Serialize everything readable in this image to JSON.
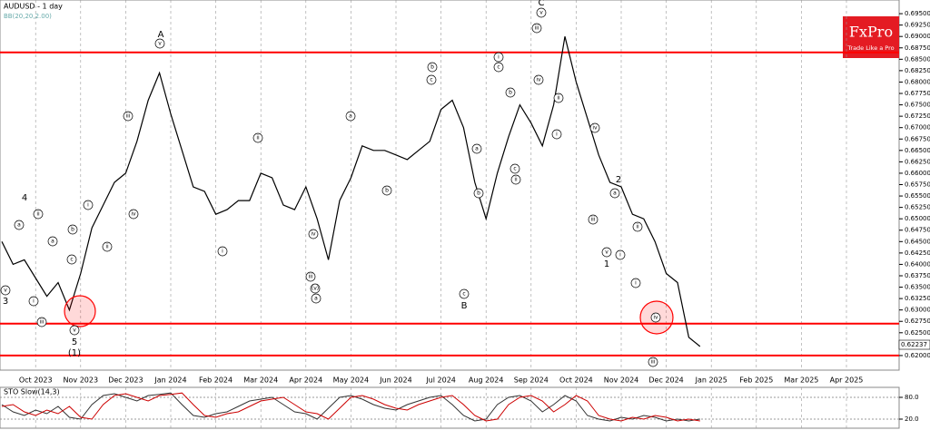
{
  "chart_data": [
    {
      "type": "line",
      "title": "AUDUSD - 1 day",
      "subtitle": "BB(20,20,2.00)",
      "categories": [
        null,
        null,
        null,
        "Oct 2023",
        null,
        null,
        null,
        "Nov 2023",
        null,
        null,
        null,
        "Dec 2023",
        null,
        null,
        null,
        "Jan 2024",
        null,
        null,
        null,
        "Feb 2024",
        null,
        null,
        null,
        "Mar 2024",
        null,
        null,
        null,
        "Apr 2024",
        null,
        null,
        null,
        "May 2024",
        null,
        null,
        null,
        "Jun 2024",
        null,
        null,
        null,
        "Jul 2024",
        null,
        null,
        null,
        "Aug 2024",
        null,
        null,
        null,
        "Sep 2024",
        null,
        null,
        null,
        "Oct 2024",
        null,
        null,
        null,
        "Nov 2024",
        null,
        null,
        null,
        "Dec 2024",
        null,
        null,
        null,
        "Jan 2025",
        null,
        null,
        null,
        "Feb 2025",
        null,
        null,
        null,
        "Mar 2025",
        null,
        null,
        null,
        "Apr 2025",
        null,
        null,
        null,
        null
      ],
      "series": [
        {
          "color": "#000000",
          "values": [
            0.645,
            0.64,
            0.641,
            0.637,
            0.633,
            0.636,
            0.63,
            0.638,
            0.648,
            0.653,
            0.658,
            0.66,
            0.667,
            0.676,
            0.682,
            0.673,
            0.665,
            0.657,
            0.656,
            0.651,
            0.652,
            0.654,
            0.654,
            0.66,
            0.659,
            0.653,
            0.652,
            0.657,
            0.65,
            0.641,
            0.654,
            0.659,
            0.666,
            0.665,
            0.665,
            0.664,
            0.663,
            0.665,
            0.667,
            0.674,
            0.676,
            0.67,
            0.658,
            0.65,
            0.66,
            0.668,
            0.675,
            0.671,
            0.666,
            0.675,
            0.69,
            0.68,
            0.672,
            0.664,
            0.658,
            0.657,
            0.651,
            0.65,
            0.645,
            0.638,
            0.636,
            0.624,
            0.622,
            null,
            null,
            null,
            null,
            null,
            null,
            null,
            null,
            null,
            null,
            null,
            null,
            null,
            null,
            null,
            null,
            null
          ]
        }
      ],
      "ylim": [
        0.6168,
        0.698
      ],
      "yticks": [
        {
          "value": 0.62,
          "label": "0.62000"
        },
        {
          "value": 0.6225,
          "label": "0.62250"
        },
        {
          "value": 0.625,
          "label": "0.62500"
        },
        {
          "value": 0.6275,
          "label": "0.62750"
        },
        {
          "value": 0.63,
          "label": "0.63000"
        },
        {
          "value": 0.6325,
          "label": "0.63250"
        },
        {
          "value": 0.635,
          "label": "0.63500"
        },
        {
          "value": 0.6375,
          "label": "0.63750"
        },
        {
          "value": 0.64,
          "label": "0.64000"
        },
        {
          "value": 0.6425,
          "label": "0.64250"
        },
        {
          "value": 0.645,
          "label": "0.64500"
        },
        {
          "value": 0.6475,
          "label": "0.64750"
        },
        {
          "value": 0.65,
          "label": "0.65000"
        },
        {
          "value": 0.6525,
          "label": "0.65250"
        },
        {
          "value": 0.655,
          "label": "0.65500"
        },
        {
          "value": 0.6575,
          "label": "0.65750"
        },
        {
          "value": 0.66,
          "label": "0.66000"
        },
        {
          "value": 0.6625,
          "label": "0.66250"
        },
        {
          "value": 0.665,
          "label": "0.66500"
        },
        {
          "value": 0.6675,
          "label": "0.66750"
        },
        {
          "value": 0.67,
          "label": "0.67000"
        },
        {
          "value": 0.6725,
          "label": "0.67250"
        },
        {
          "value": 0.675,
          "label": "0.67500"
        },
        {
          "value": 0.6775,
          "label": "0.67750"
        },
        {
          "value": 0.68,
          "label": "0.68000"
        },
        {
          "value": 0.6825,
          "label": "0.68250"
        },
        {
          "value": 0.685,
          "label": "0.68500"
        },
        {
          "value": 0.6875,
          "label": "0.68750"
        },
        {
          "value": 0.69,
          "label": "0.69000"
        },
        {
          "value": 0.6925,
          "label": "0.69250"
        },
        {
          "value": 0.695,
          "label": "0.69500"
        }
      ],
      "levels": [
        {
          "value": 0.6865,
          "color": "#ff0000"
        },
        {
          "value": 0.627,
          "color": "#ff0000"
        },
        {
          "value": 0.62,
          "color": "#ff0000"
        }
      ],
      "last_price": 0.62237,
      "annotations": [
        "A",
        "v",
        "iii",
        "iv",
        "ii",
        "i",
        "4",
        "ii",
        "a",
        "a",
        "b",
        "c",
        "i",
        "iii",
        "v",
        "5",
        "(1)",
        "3",
        "v",
        "ii",
        "i",
        "iv",
        "iii",
        "(v)",
        "a",
        "a",
        "b",
        "b",
        "c",
        "B",
        "c",
        "a",
        "b",
        "i",
        "c",
        "b",
        "c",
        "ii",
        "C",
        "v",
        "iii",
        "iv",
        "ii",
        "i",
        "iv",
        "a",
        "2",
        "iii",
        "v",
        "1",
        "ii",
        "i",
        "i",
        "iv",
        "iii"
      ]
    },
    {
      "type": "line",
      "title": "STO Slow(14,3)",
      "series": [
        {
          "color": "#333333",
          "values": [
            60,
            40,
            30,
            45,
            35,
            55,
            25,
            20,
            60,
            85,
            90,
            80,
            70,
            85,
            88,
            92,
            60,
            30,
            25,
            35,
            40,
            55,
            70,
            75,
            80,
            60,
            40,
            35,
            20,
            50,
            80,
            85,
            75,
            60,
            50,
            45,
            60,
            70,
            80,
            85,
            60,
            30,
            15,
            20,
            60,
            80,
            85,
            70,
            40,
            60,
            85,
            70,
            30,
            20,
            15,
            25,
            20,
            30,
            25,
            15,
            20,
            15,
            20
          ]
        },
        {
          "color": "#cc0000",
          "values": [
            55,
            60,
            40,
            30,
            45,
            35,
            55,
            25,
            20,
            60,
            85,
            90,
            80,
            70,
            85,
            88,
            92,
            60,
            30,
            25,
            35,
            40,
            55,
            70,
            75,
            80,
            60,
            40,
            35,
            20,
            50,
            80,
            85,
            75,
            60,
            50,
            45,
            60,
            70,
            80,
            85,
            60,
            30,
            15,
            20,
            60,
            80,
            85,
            70,
            40,
            60,
            85,
            70,
            30,
            20,
            15,
            25,
            20,
            30,
            25,
            15,
            20,
            15
          ]
        }
      ],
      "ylim": [
        0,
        100
      ],
      "yticks": [
        {
          "value": 80,
          "label": "80.0"
        },
        {
          "value": 20,
          "label": "20.0"
        }
      ]
    }
  ],
  "logo": {
    "brand": "FxPro",
    "tagline": "Trade Like a Pro"
  }
}
